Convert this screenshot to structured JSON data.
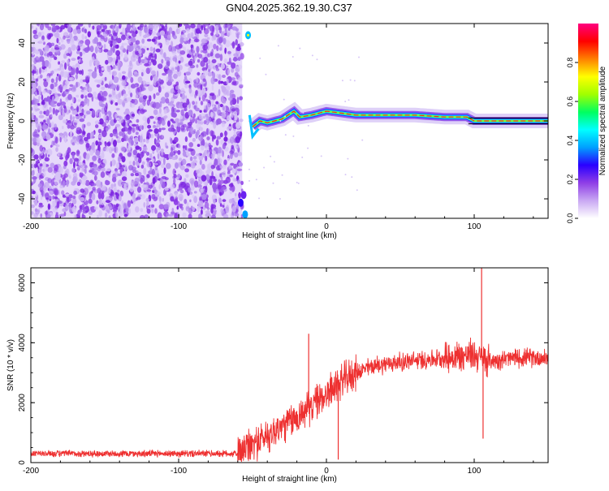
{
  "title": "GN04.2025.362.19.30.C37",
  "chart_data": [
    {
      "type": "heatmap",
      "xlabel": "Height of straight line (km)",
      "ylabel": "Frequency (Hz)",
      "xlim": [
        -200,
        150
      ],
      "ylim": [
        -50,
        50
      ],
      "x_ticks": [
        -200,
        -100,
        0,
        100
      ],
      "x_tick_labels": [
        "-200",
        "-100",
        "0",
        "100"
      ],
      "y_ticks": [
        -40,
        -20,
        0,
        20,
        40
      ],
      "y_tick_labels": [
        "-40",
        "-20",
        "0",
        "20",
        "40"
      ],
      "colorbar": {
        "label": "Normalized spectral amplitude",
        "range": [
          0,
          1
        ],
        "ticks": [
          0.0,
          0.2,
          0.4,
          0.6,
          0.8
        ],
        "tick_labels": [
          "0.0",
          "0.2",
          "0.4",
          "0.6",
          "0.8"
        ],
        "colors": [
          "#ffffff",
          "#c9a8f3",
          "#8f3ee6",
          "#2a00ff",
          "#00a0ff",
          "#00ffff",
          "#00ff60",
          "#a0ff00",
          "#ffff00",
          "#ff8000",
          "#ff0000",
          "#ff0080"
        ]
      },
      "noise_region_x": [
        -200,
        -57
      ],
      "carrier_track": {
        "x": [
          -50,
          -45,
          -40,
          -30,
          -22,
          -18,
          -10,
          0,
          10,
          20,
          40,
          60,
          80,
          95,
          100,
          110,
          130,
          150
        ],
        "freq": [
          -3,
          0,
          -1,
          1,
          5,
          2,
          3,
          5,
          4,
          3,
          3,
          3,
          2,
          2,
          0,
          0,
          0,
          0
        ]
      }
    },
    {
      "type": "line",
      "xlabel": "Height of straight line (km)",
      "ylabel": "SNR (10 * v/v)",
      "xlim": [
        -200,
        150
      ],
      "ylim": [
        0,
        6500
      ],
      "x_ticks": [
        -200,
        -100,
        0,
        100
      ],
      "x_tick_labels": [
        "-200",
        "-100",
        "0",
        "100"
      ],
      "y_ticks": [
        0,
        2000,
        4000,
        6000
      ],
      "y_tick_labels": [
        "0",
        "2000",
        "4000",
        "6000"
      ],
      "line_color": "#ee3030",
      "trend": {
        "x": [
          -200,
          -60,
          -50,
          -40,
          -30,
          -20,
          -10,
          0,
          10,
          20,
          30,
          40,
          60,
          80,
          100,
          110,
          130,
          150
        ],
        "y": [
          300,
          300,
          600,
          900,
          1200,
          1500,
          1900,
          2300,
          2700,
          3000,
          3200,
          3300,
          3400,
          3500,
          3600,
          3400,
          3500,
          3500
        ]
      },
      "spikes": [
        {
          "x": -12,
          "y": 4300
        },
        {
          "x": 8,
          "y": 100
        },
        {
          "x": 105,
          "y": 6500
        },
        {
          "x": 106,
          "y": 800
        }
      ]
    }
  ]
}
